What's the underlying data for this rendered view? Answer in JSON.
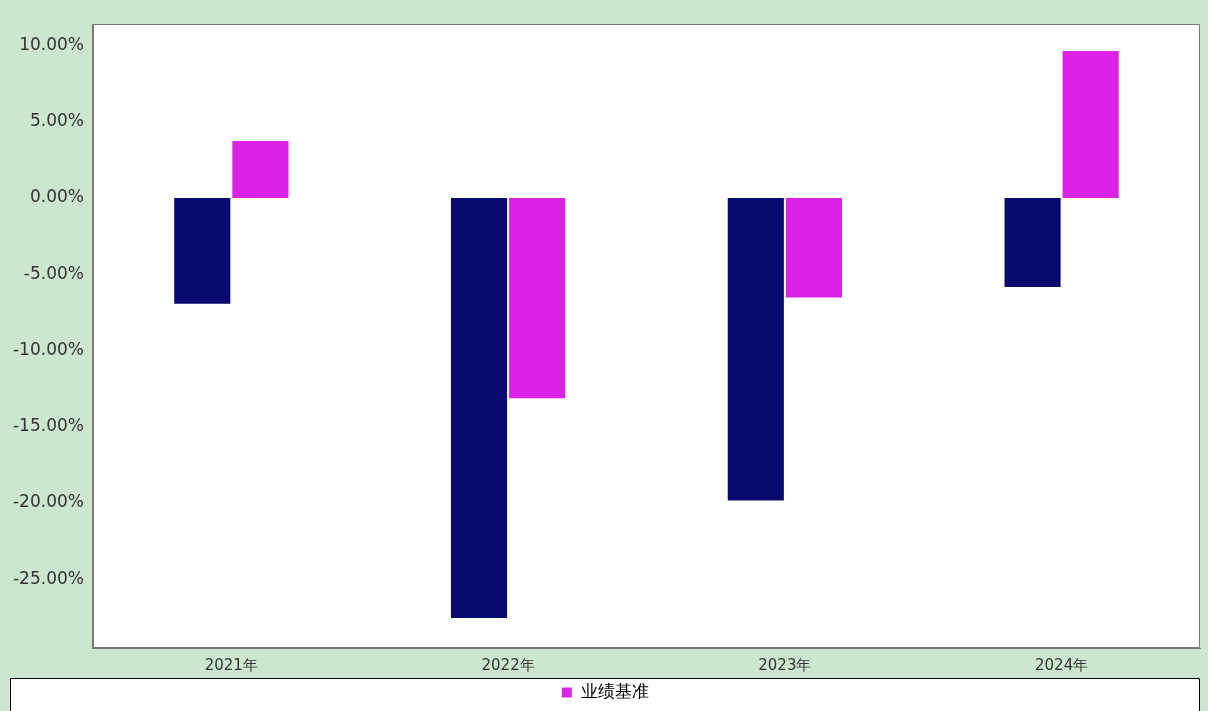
{
  "chart_data": {
    "type": "bar",
    "categories": [
      "2021年",
      "2022年",
      "2023年",
      "2024年"
    ],
    "series": [
      {
        "color": "#0a0a6e",
        "values": [
          -7.0,
          -27.6,
          -19.9,
          -5.9
        ]
      },
      {
        "name": "业绩基准",
        "color": "#dd22e8",
        "values": [
          3.8,
          -13.2,
          -6.6,
          9.7
        ]
      }
    ],
    "ylim": [
      -29.5,
      11.4
    ],
    "yticks": [
      {
        "value": -25,
        "label": "-25.00%"
      },
      {
        "value": -20,
        "label": "-20.00%"
      },
      {
        "value": -15,
        "label": "-15.00%"
      },
      {
        "value": -10,
        "label": "-10.00%"
      },
      {
        "value": -5,
        "label": "-5.00%"
      },
      {
        "value": 0,
        "label": "0.00%"
      },
      {
        "value": 5,
        "label": "5.00%"
      },
      {
        "value": 10,
        "label": "10.00%"
      }
    ],
    "grid": false,
    "legend": "bottom"
  }
}
